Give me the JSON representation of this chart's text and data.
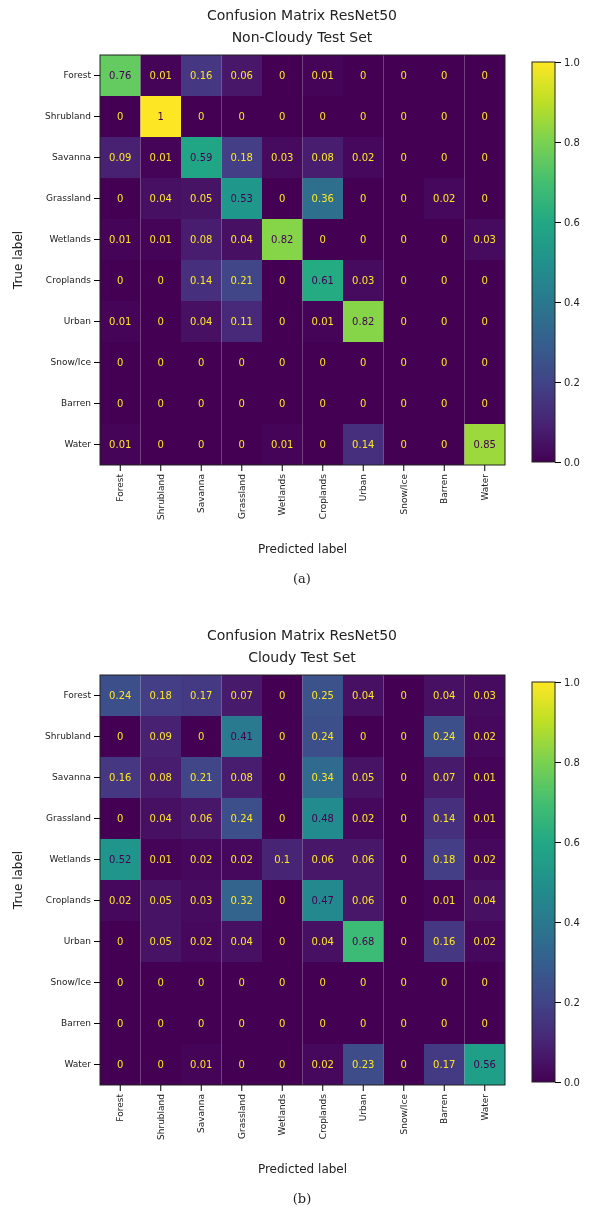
{
  "chart_data": [
    {
      "type": "heatmap",
      "title": "Confusion Matrix ResNet50",
      "subtitle": "Non-Cloudy Test Set",
      "xlabel": "Predicted label",
      "ylabel": "True label",
      "categories": [
        "Forest",
        "Shrubland",
        "Savanna",
        "Grassland",
        "Wetlands",
        "Croplands",
        "Urban",
        "Snow/Ice",
        "Barren",
        "Water"
      ],
      "y_categories": [
        "Forest",
        "Shrubland",
        "Savanna",
        "Grassland",
        "Wetlands",
        "Croplands",
        "Urban",
        "Snow/Ice",
        "Barren",
        "Water"
      ],
      "cells": [
        [
          0.76,
          0.01,
          0.16,
          0.06,
          0,
          0.01,
          0,
          0,
          0,
          0
        ],
        [
          0,
          1,
          0,
          0,
          0,
          0,
          0,
          0,
          0,
          0
        ],
        [
          0.09,
          0.01,
          0.59,
          0.18,
          0.03,
          0.08,
          0.02,
          0,
          0,
          0
        ],
        [
          0,
          0.04,
          0.05,
          0.53,
          0,
          0.36,
          0,
          0,
          0.02,
          0
        ],
        [
          0.01,
          0.01,
          0.08,
          0.04,
          0.82,
          0,
          0,
          0,
          0,
          0.03
        ],
        [
          0,
          0,
          0.14,
          0.21,
          0,
          0.61,
          0.03,
          0,
          0,
          0
        ],
        [
          0.01,
          0,
          0.04,
          0.11,
          0,
          0.01,
          0.82,
          0,
          0,
          0
        ],
        [
          0,
          0,
          0,
          0,
          0,
          0,
          0,
          0,
          0,
          0
        ],
        [
          0,
          0,
          0,
          0,
          0,
          0,
          0,
          0,
          0,
          0
        ],
        [
          0.01,
          0,
          0,
          0,
          0.01,
          0,
          0.14,
          0,
          0,
          0.85
        ]
      ],
      "clim": [
        0,
        1
      ],
      "cticks": [
        {
          "value": 0,
          "label": "0.0"
        },
        {
          "value": 0.2,
          "label": "0.2"
        },
        {
          "value": 0.4,
          "label": "0.4"
        },
        {
          "value": 0.6,
          "label": "0.6"
        },
        {
          "value": 0.8,
          "label": "0.8"
        },
        {
          "value": 1,
          "label": "1.0"
        }
      ],
      "data_labels": true,
      "annotations": [
        "(a)"
      ]
    },
    {
      "type": "heatmap",
      "title": "Confusion Matrix ResNet50",
      "subtitle": "Cloudy Test Set",
      "xlabel": "Predicted label",
      "ylabel": "True label",
      "categories": [
        "Forest",
        "Shrubland",
        "Savanna",
        "Grassland",
        "Wetlands",
        "Croplands",
        "Urban",
        "Snow/Ice",
        "Barren",
        "Water"
      ],
      "y_categories": [
        "Forest",
        "Shrubland",
        "Savanna",
        "Grassland",
        "Wetlands",
        "Croplands",
        "Urban",
        "Snow/Ice",
        "Barren",
        "Water"
      ],
      "cells": [
        [
          0.24,
          0.18,
          0.17,
          0.07,
          0,
          0.25,
          0.04,
          0,
          0.04,
          0.03
        ],
        [
          0,
          0.09,
          0,
          0.41,
          0,
          0.24,
          0,
          0,
          0.24,
          0.02
        ],
        [
          0.16,
          0.08,
          0.21,
          0.08,
          0,
          0.34,
          0.05,
          0,
          0.07,
          0.01
        ],
        [
          0,
          0.04,
          0.06,
          0.24,
          0,
          0.48,
          0.02,
          0,
          0.14,
          0.01
        ],
        [
          0.52,
          0.01,
          0.02,
          0.02,
          0.1,
          0.06,
          0.06,
          0,
          0.18,
          0.02
        ],
        [
          0.02,
          0.05,
          0.03,
          0.32,
          0,
          0.47,
          0.06,
          0,
          0.01,
          0.04
        ],
        [
          0,
          0.05,
          0.02,
          0.04,
          0,
          0.04,
          0.68,
          0,
          0.16,
          0.02
        ],
        [
          0,
          0,
          0,
          0,
          0,
          0,
          0,
          0,
          0,
          0
        ],
        [
          0,
          0,
          0,
          0,
          0,
          0,
          0,
          0,
          0,
          0
        ],
        [
          0,
          0,
          0.01,
          0,
          0,
          0.02,
          0.23,
          0,
          0.17,
          0.56
        ]
      ],
      "clim": [
        0,
        1
      ],
      "cticks": [
        {
          "value": 0,
          "label": "0.0"
        },
        {
          "value": 0.2,
          "label": "0.2"
        },
        {
          "value": 0.4,
          "label": "0.4"
        },
        {
          "value": 0.6,
          "label": "0.6"
        },
        {
          "value": 0.8,
          "label": "0.8"
        },
        {
          "value": 1,
          "label": "1.0"
        }
      ],
      "data_labels": true,
      "annotations": [
        "(b)"
      ]
    }
  ]
}
